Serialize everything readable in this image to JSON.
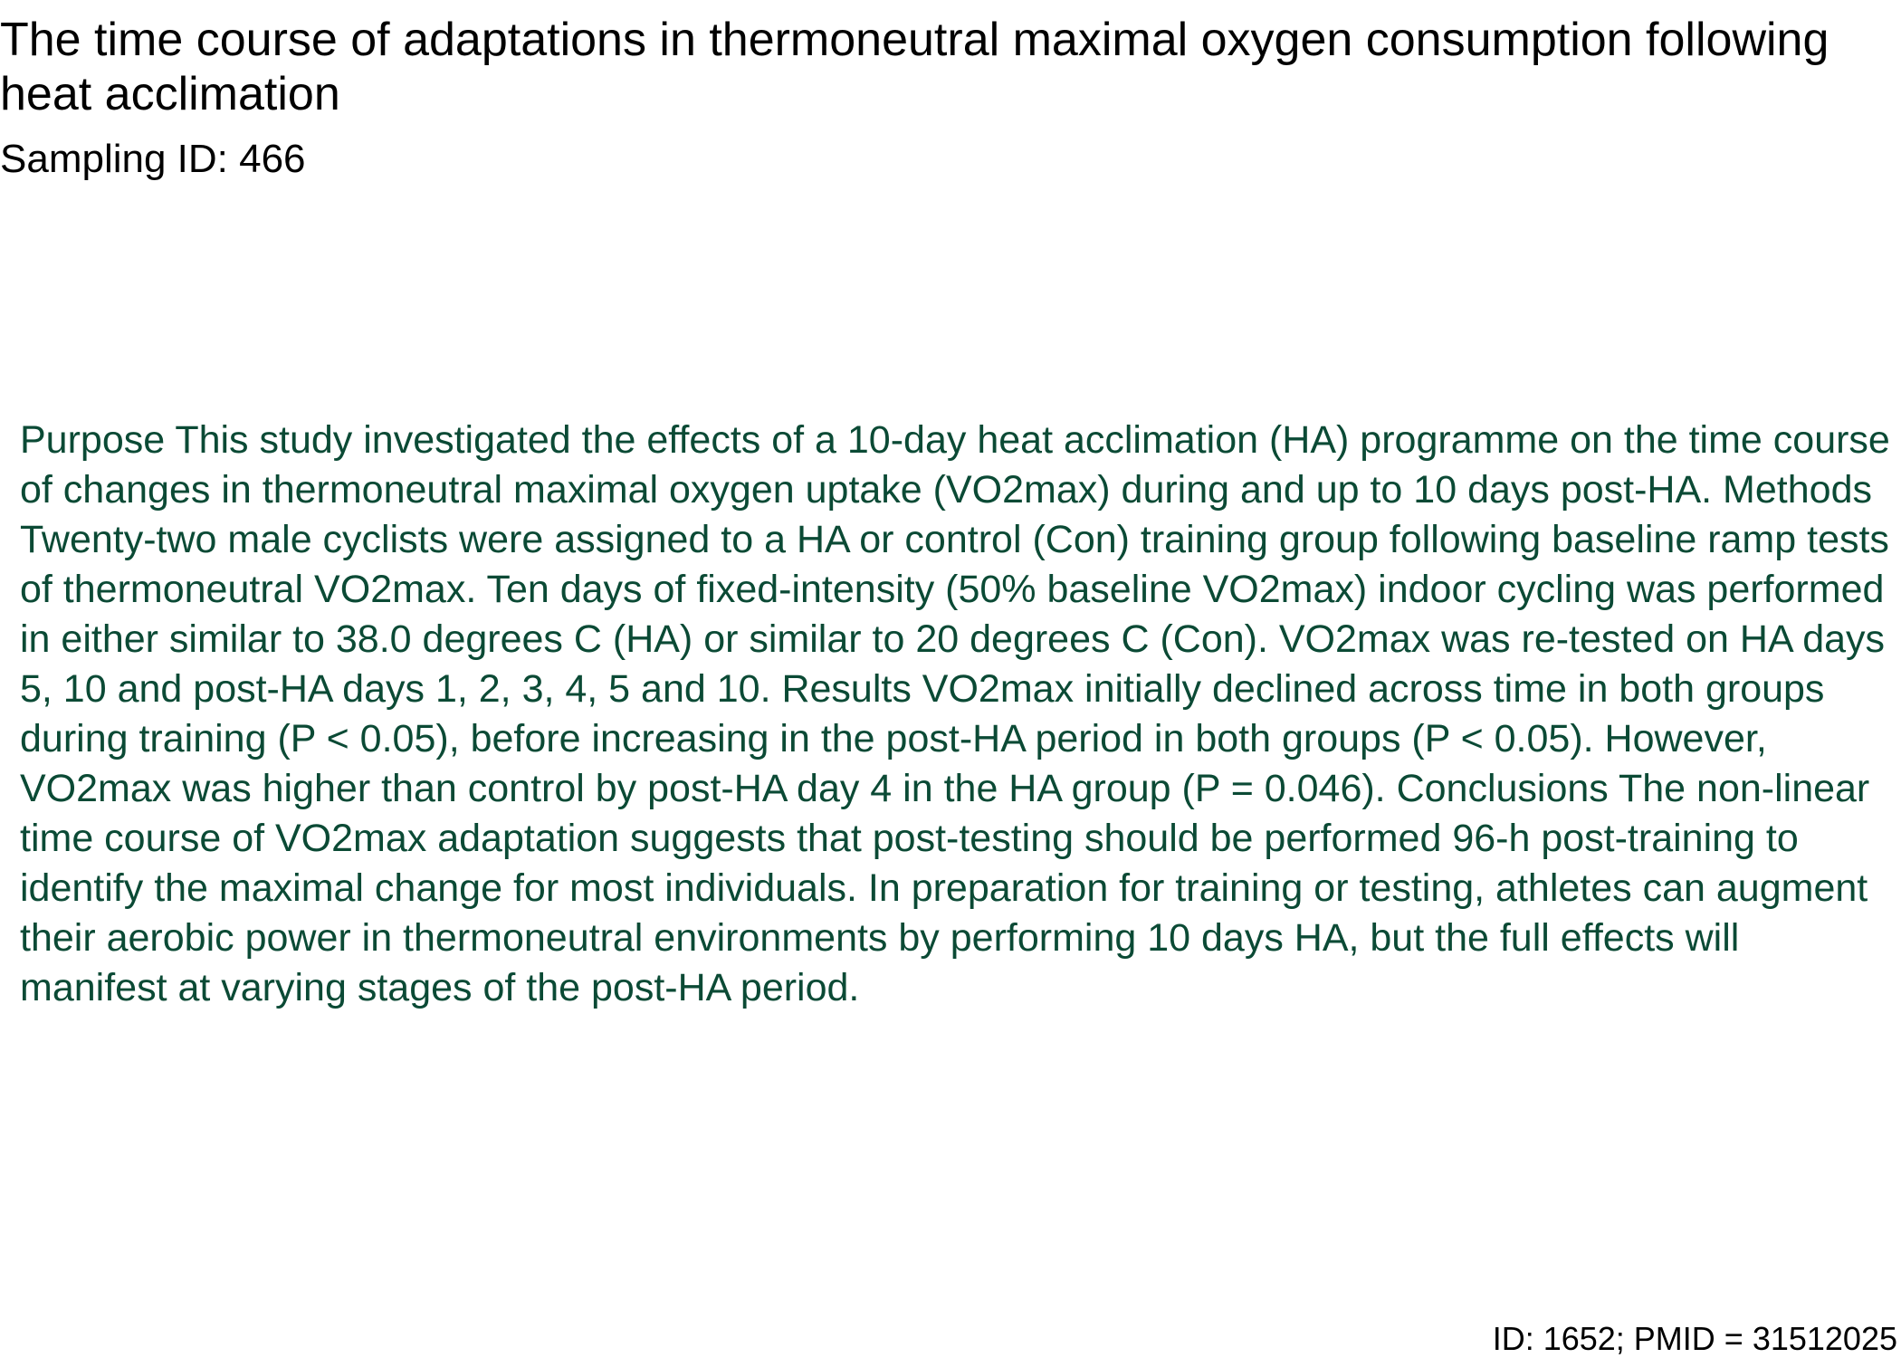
{
  "document": {
    "title": "The time course of adaptations in thermoneutral maximal oxygen consumption following heat acclimation",
    "sampling_id": "Sampling ID: 466",
    "abstract": "Purpose This study investigated the effects of a 10-day heat acclimation (HA) programme on the time course of changes in thermoneutral maximal oxygen uptake (VO2max) during and up to 10 days post-HA. Methods Twenty-two male cyclists were assigned to a HA or control (Con) training group following baseline ramp tests of thermoneutral VO2max. Ten days of fixed-intensity (50% baseline VO2max) indoor cycling was performed in either similar to 38.0 degrees C (HA) or similar to 20 degrees C (Con). VO2max was re-tested on HA days 5, 10 and post-HA days 1, 2, 3, 4, 5 and 10. Results VO2max initially declined across time in both groups during training (P < 0.05), before increasing in the post-HA period in both groups (P < 0.05). However, VO2max was higher than control by post-HA day 4 in the HA group (P = 0.046). Conclusions The non-linear time course of VO2max adaptation suggests that post-testing should be performed 96-h post-training to identify the maximal change for most individuals. In preparation for training or testing, athletes can augment their aerobic power in thermoneutral environments by performing 10 days HA, but the full effects will manifest at varying stages of the post-HA period.",
    "footer_id": "ID: 1652; PMID = 31512025"
  },
  "colors": {
    "abstract_text": "#0b4a35",
    "heading_text": "#000000",
    "background": "#ffffff"
  }
}
